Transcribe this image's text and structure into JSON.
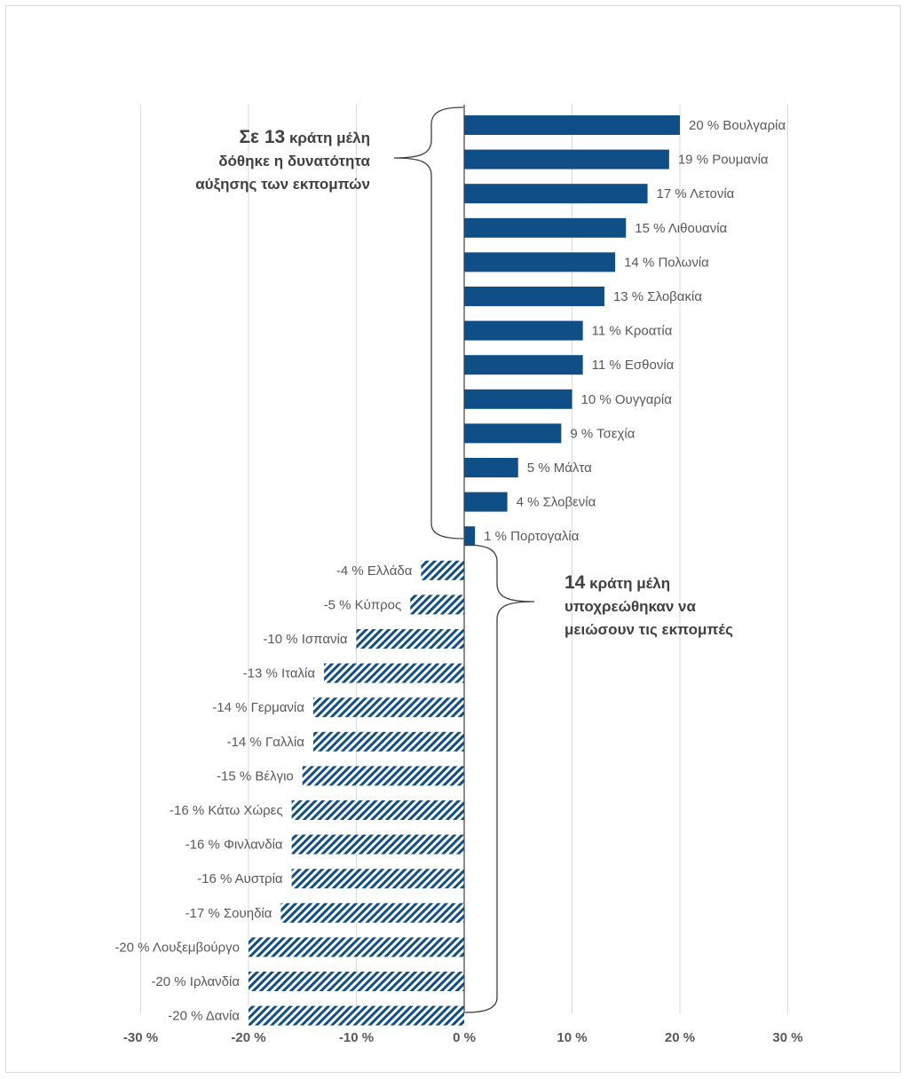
{
  "chart_data": {
    "type": "bar",
    "orientation": "horizontal",
    "unit": "%",
    "xlim": [
      -30,
      30
    ],
    "x_ticks": [
      "-30 %",
      "-20 %",
      "-10 %",
      "0 %",
      "10 %",
      "20 %",
      "30 %"
    ],
    "grid": true,
    "bars": [
      {
        "label": "20 % Βουλγαρία",
        "value": 20,
        "group": "increase"
      },
      {
        "label": "19 % Ρουμανία",
        "value": 19,
        "group": "increase"
      },
      {
        "label": "17 % Λετονία",
        "value": 17,
        "group": "increase"
      },
      {
        "label": "15 % Λιθουανία",
        "value": 15,
        "group": "increase"
      },
      {
        "label": "14 % Πολωνία",
        "value": 14,
        "group": "increase"
      },
      {
        "label": "13 % Σλοβακία",
        "value": 13,
        "group": "increase"
      },
      {
        "label": "11 % Κροατία",
        "value": 11,
        "group": "increase"
      },
      {
        "label": "11 % Εσθονία",
        "value": 11,
        "group": "increase"
      },
      {
        "label": "10 % Ουγγαρία",
        "value": 10,
        "group": "increase"
      },
      {
        "label": "9 % Τσεχία",
        "value": 9,
        "group": "increase"
      },
      {
        "label": "5 % Μάλτα",
        "value": 5,
        "group": "increase"
      },
      {
        "label": "4 % Σλοβενία",
        "value": 4,
        "group": "increase"
      },
      {
        "label": "1 % Πορτογαλία",
        "value": 1,
        "group": "increase"
      },
      {
        "label": "-4 % Ελλάδα",
        "value": -4,
        "group": "decrease"
      },
      {
        "label": "-5 % Κύπρος",
        "value": -5,
        "group": "decrease"
      },
      {
        "label": "-10 % Ισπανία",
        "value": -10,
        "group": "decrease"
      },
      {
        "label": "-13 % Ιταλία",
        "value": -13,
        "group": "decrease"
      },
      {
        "label": "-14 % Γερμανία",
        "value": -14,
        "group": "decrease"
      },
      {
        "label": "-14 % Γαλλία",
        "value": -14,
        "group": "decrease"
      },
      {
        "label": "-15 % Βέλγιο",
        "value": -15,
        "group": "decrease"
      },
      {
        "label": "-16 % Κάτω Χώρες",
        "value": -16,
        "group": "decrease"
      },
      {
        "label": "-16 % Φινλανδία",
        "value": -16,
        "group": "decrease"
      },
      {
        "label": "-16 % Αυστρία",
        "value": -16,
        "group": "decrease"
      },
      {
        "label": "-17 % Σουηδία",
        "value": -17,
        "group": "decrease"
      },
      {
        "label": "-20 % Λουξεμβούργο",
        "value": -20,
        "group": "decrease"
      },
      {
        "label": "-20 % Ιρλανδία",
        "value": -20,
        "group": "decrease"
      },
      {
        "label": "-20 % Δανία",
        "value": -20,
        "group": "decrease"
      }
    ],
    "annotations": {
      "increase": {
        "bold_number": "13",
        "prefix": "Σε ",
        "text": "κράτη μέλη",
        "lines": [
          "δόθηκε η δυνατότητα",
          "αύξησης των εκπομπών"
        ]
      },
      "decrease": {
        "bold_number": "14",
        "prefix": "",
        "text": "κράτη μέλη",
        "lines": [
          "υποχρεώθηκαν να",
          "μειώσουν τις εκπομπές"
        ]
      }
    },
    "colors": {
      "bar": "#0f4e86",
      "grid": "#d9d9d9",
      "axis": "#404040",
      "label": "#595959",
      "tick": "#595959"
    }
  }
}
